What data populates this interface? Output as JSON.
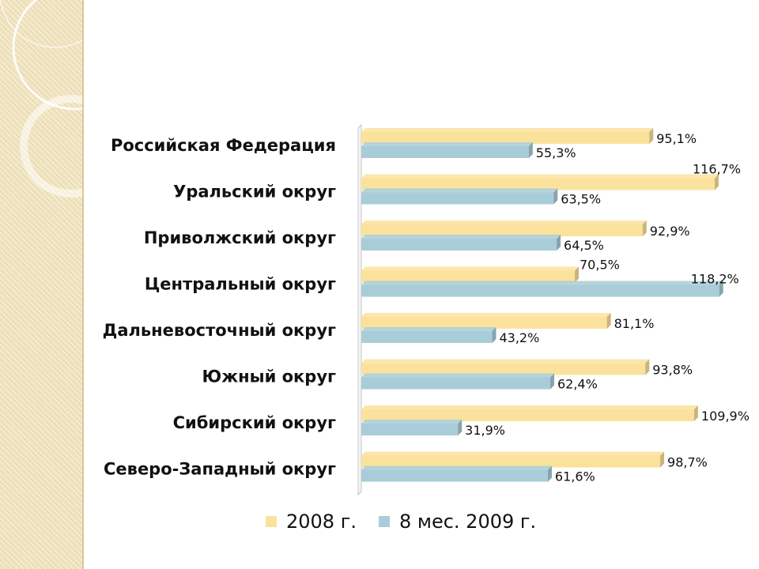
{
  "colors": {
    "series_2008": "#fbe29c",
    "series_2009": "#a9cdd8",
    "strip": "#efe2bb"
  },
  "chart_data": {
    "type": "bar",
    "orientation": "horizontal",
    "categories": [
      "Российская Федерация",
      "Уральский округ",
      "Приволжский округ",
      "Центральный округ",
      "Дальневосточный округ",
      "Южный округ",
      "Сибирский округ",
      "Северо-Западный округ"
    ],
    "series": [
      {
        "name": "2008 г.",
        "values": [
          95.1,
          116.7,
          92.9,
          70.5,
          81.1,
          93.8,
          109.9,
          98.7
        ],
        "labels": [
          "95,1%",
          "116,7%",
          "92,9%",
          "70,5%",
          "81,1%",
          "93,8%",
          "109,9%",
          "98,7%"
        ]
      },
      {
        "name": "8 мес. 2009 г.",
        "values": [
          55.3,
          63.5,
          64.5,
          118.2,
          43.2,
          62.4,
          31.9,
          61.6
        ],
        "labels": [
          "55,3%",
          "63,5%",
          "64,5%",
          "118,2%",
          "43,2%",
          "62,4%",
          "31,9%",
          "61,6%"
        ]
      }
    ],
    "xlim": [
      0,
      120
    ],
    "grid": false,
    "legend": "bottom"
  }
}
